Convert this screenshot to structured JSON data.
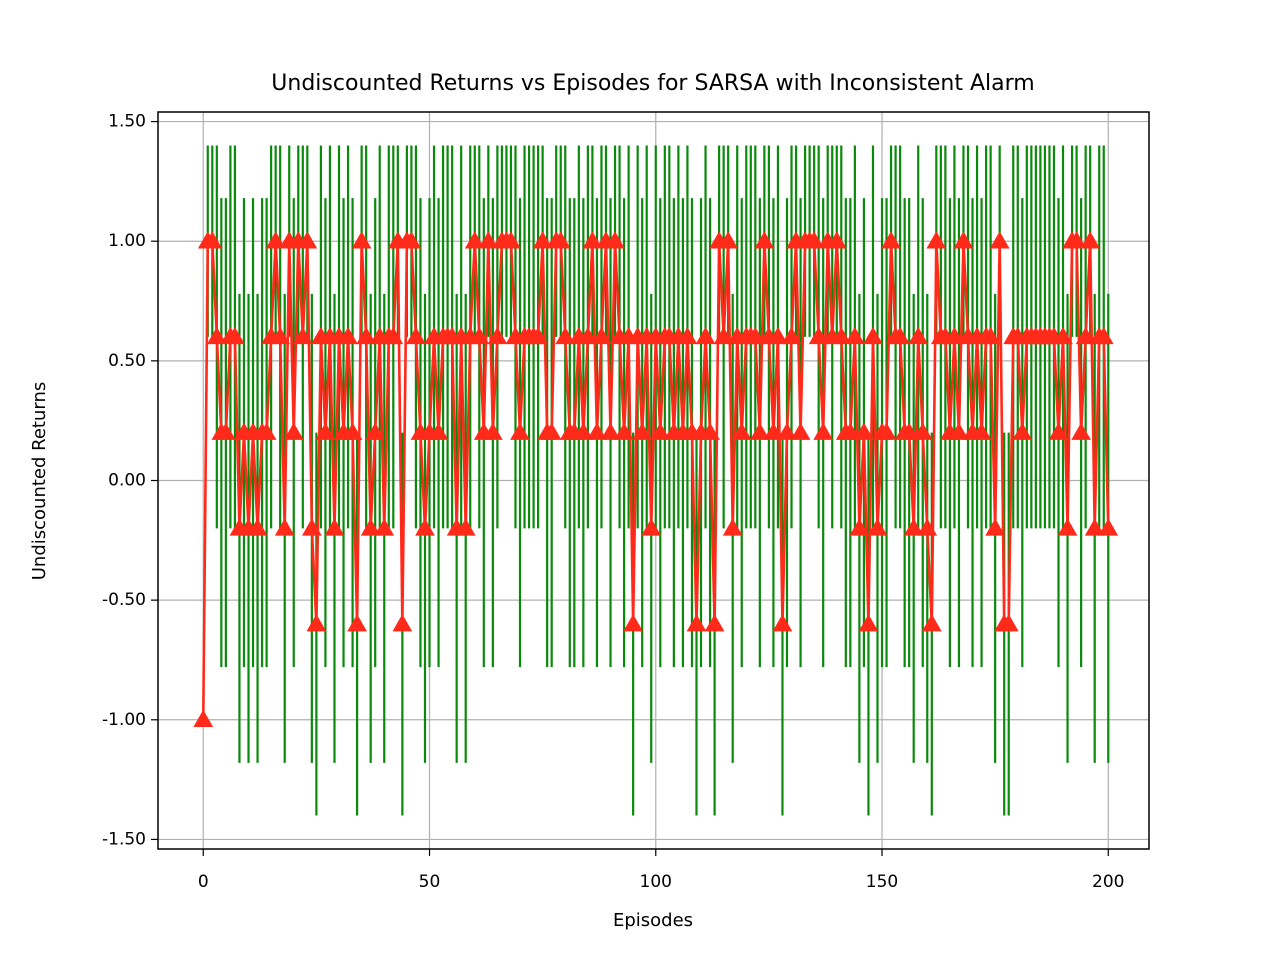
{
  "chart_data": {
    "type": "errorbar",
    "title": "Undiscounted Returns vs Episodes for SARSA with Inconsistent Alarm",
    "xlabel": "Episodes",
    "ylabel": "Undiscounted Returns",
    "xlim": [
      -10,
      209
    ],
    "ylim": [
      -1.54,
      1.54
    ],
    "xticks": [
      0,
      50,
      100,
      150,
      200
    ],
    "yticks": [
      {
        "value": -1.5,
        "label": "-1.50"
      },
      {
        "value": -1,
        "label": "-1.00"
      },
      {
        "value": -0.5,
        "label": "-0.50"
      },
      {
        "value": 0,
        "label": "0.00"
      },
      {
        "value": 0.5,
        "label": "0.50"
      },
      {
        "value": 1,
        "label": "1.00"
      },
      {
        "value": 1.5,
        "label": "1.50"
      }
    ],
    "grid": true,
    "x": [
      0,
      1,
      2,
      3,
      4,
      5,
      6,
      7,
      8,
      9,
      10,
      11,
      12,
      13,
      14,
      15,
      16,
      17,
      18,
      19,
      20,
      21,
      22,
      23,
      24,
      25,
      26,
      27,
      28,
      29,
      30,
      31,
      32,
      33,
      34,
      35,
      36,
      37,
      38,
      39,
      40,
      41,
      42,
      43,
      44,
      45,
      46,
      47,
      48,
      49,
      50,
      51,
      52,
      53,
      54,
      55,
      56,
      57,
      58,
      59,
      60,
      61,
      62,
      63,
      64,
      65,
      66,
      67,
      68,
      69,
      70,
      71,
      72,
      73,
      74,
      75,
      76,
      77,
      78,
      79,
      80,
      81,
      82,
      83,
      84,
      85,
      86,
      87,
      88,
      89,
      90,
      91,
      92,
      93,
      94,
      95,
      96,
      97,
      98,
      99,
      100,
      101,
      102,
      103,
      104,
      105,
      106,
      107,
      108,
      109,
      110,
      111,
      112,
      113,
      114,
      115,
      116,
      117,
      118,
      119,
      120,
      121,
      122,
      123,
      124,
      125,
      126,
      127,
      128,
      129,
      130,
      131,
      132,
      133,
      134,
      135,
      136,
      137,
      138,
      139,
      140,
      141,
      142,
      143,
      144,
      145,
      146,
      147,
      148,
      149,
      150,
      151,
      152,
      153,
      154,
      155,
      156,
      157,
      158,
      159,
      160,
      161,
      162,
      163,
      164,
      165,
      166,
      167,
      168,
      169,
      170,
      171,
      172,
      173,
      174,
      175,
      176,
      177,
      178,
      179,
      180,
      181,
      182,
      183,
      184,
      185,
      186,
      187,
      188,
      189,
      190,
      191,
      192,
      193,
      194,
      195,
      196,
      197,
      198,
      199,
      200
    ],
    "series": [
      {
        "color": "#ff2a1a",
        "error_color": "#0a8a0a",
        "values": [
          -1,
          1,
          1,
          0.6,
          0.2,
          0.2,
          0.6,
          0.6,
          -0.2,
          0.2,
          -0.2,
          0.2,
          -0.2,
          0.2,
          0.2,
          0.6,
          1,
          0.6,
          -0.2,
          1,
          0.2,
          1,
          0.6,
          1,
          -0.2,
          -0.6,
          0.6,
          0.2,
          0.6,
          -0.2,
          0.6,
          0.2,
          0.6,
          0.2,
          -0.6,
          1,
          0.6,
          -0.2,
          0.2,
          0.6,
          -0.2,
          0.6,
          0.6,
          1,
          -0.6,
          1,
          1,
          0.6,
          0.2,
          -0.2,
          0.2,
          0.6,
          0.2,
          0.6,
          0.6,
          0.6,
          -0.2,
          0.6,
          -0.2,
          0.6,
          1,
          0.6,
          0.2,
          1,
          0.2,
          0.6,
          1,
          1,
          1,
          0.6,
          0.2,
          0.6,
          0.6,
          0.6,
          0.6,
          1,
          0.2,
          0.2,
          1,
          1,
          0.6,
          0.2,
          0.2,
          0.6,
          0.2,
          0.6,
          1,
          0.2,
          0.6,
          1,
          0.2,
          1,
          0.6,
          0.2,
          0.6,
          -0.6,
          0.6,
          0.2,
          0.6,
          -0.2,
          0.6,
          0.2,
          0.6,
          0.6,
          0.2,
          0.6,
          0.2,
          0.6,
          0.2,
          -0.6,
          0.2,
          0.6,
          0.2,
          -0.6,
          1,
          0.6,
          1,
          -0.2,
          0.6,
          0.2,
          0.6,
          0.6,
          0.6,
          0.2,
          1,
          0.6,
          0.2,
          0.6,
          -0.6,
          0.2,
          0.6,
          1,
          0.2,
          1,
          1,
          1,
          0.6,
          0.2,
          1,
          0.6,
          1,
          0.6,
          0.2,
          0.2,
          0.6,
          -0.2,
          0.2,
          -0.6,
          0.6,
          -0.2,
          0.2,
          0.2,
          1,
          0.6,
          0.6,
          0.2,
          0.2,
          -0.2,
          0.6,
          0.2,
          -0.2,
          -0.6,
          1,
          0.6,
          0.6,
          0.2,
          0.6,
          0.2,
          1,
          0.6,
          0.2,
          0.6,
          0.2,
          0.6,
          0.6,
          -0.2,
          1,
          -0.6,
          -0.6,
          0.6,
          0.6,
          0.2,
          0.6,
          0.6,
          0.6,
          0.6,
          0.6,
          0.6,
          0.6,
          0.2,
          0.6,
          -0.2,
          1,
          1,
          0.2,
          0.6,
          1,
          -0.2,
          0.6,
          0.6,
          -0.2
        ],
        "errors": [
          0,
          0.4,
          0.4,
          0.8,
          0.98,
          0.98,
          0.8,
          0.8,
          0.98,
          0.98,
          0.98,
          0.98,
          0.98,
          0.98,
          0.98,
          0.8,
          0.4,
          0.8,
          0.98,
          0.4,
          0.98,
          0.4,
          0.8,
          0.4,
          0.98,
          0.8,
          0.8,
          0.98,
          0.8,
          0.98,
          0.8,
          0.98,
          0.8,
          0.98,
          0.8,
          0.4,
          0.8,
          0.98,
          0.98,
          0.8,
          0.98,
          0.8,
          0.8,
          0.4,
          0.8,
          0.4,
          0.4,
          0.8,
          0.98,
          0.98,
          0.98,
          0.8,
          0.98,
          0.8,
          0.8,
          0.8,
          0.98,
          0.8,
          0.98,
          0.8,
          0.4,
          0.8,
          0.98,
          0.4,
          0.98,
          0.8,
          0.4,
          0.4,
          0.4,
          0.8,
          0.98,
          0.8,
          0.8,
          0.8,
          0.8,
          0.4,
          0.98,
          0.98,
          0.4,
          0.4,
          0.8,
          0.98,
          0.98,
          0.8,
          0.98,
          0.8,
          0.4,
          0.98,
          0.8,
          0.4,
          0.98,
          0.4,
          0.8,
          0.98,
          0.8,
          0.8,
          0.8,
          0.98,
          0.8,
          0.98,
          0.8,
          0.98,
          0.8,
          0.8,
          0.98,
          0.8,
          0.98,
          0.8,
          0.98,
          0.8,
          0.98,
          0.8,
          0.98,
          0.8,
          0.4,
          0.8,
          0.4,
          0.98,
          0.8,
          0.98,
          0.8,
          0.8,
          0.8,
          0.98,
          0.4,
          0.8,
          0.98,
          0.8,
          0.8,
          0.98,
          0.8,
          0.4,
          0.98,
          0.4,
          0.4,
          0.4,
          0.8,
          0.98,
          0.4,
          0.8,
          0.4,
          0.8,
          0.98,
          0.98,
          0.8,
          0.98,
          0.98,
          0.8,
          0.8,
          0.98,
          0.98,
          0.98,
          0.4,
          0.8,
          0.8,
          0.98,
          0.98,
          0.98,
          0.8,
          0.98,
          0.98,
          0.8,
          0.4,
          0.8,
          0.8,
          0.98,
          0.8,
          0.98,
          0.4,
          0.8,
          0.98,
          0.8,
          0.98,
          0.8,
          0.8,
          0.98,
          0.4,
          0.8,
          0.8,
          0.8,
          0.8,
          0.98,
          0.8,
          0.8,
          0.8,
          0.8,
          0.8,
          0.8,
          0.8,
          0.98,
          0.8,
          0.98,
          0.4,
          0.4,
          0.98,
          0.8,
          0.4,
          0.98,
          0.8,
          0.8,
          0.98
        ]
      }
    ]
  }
}
